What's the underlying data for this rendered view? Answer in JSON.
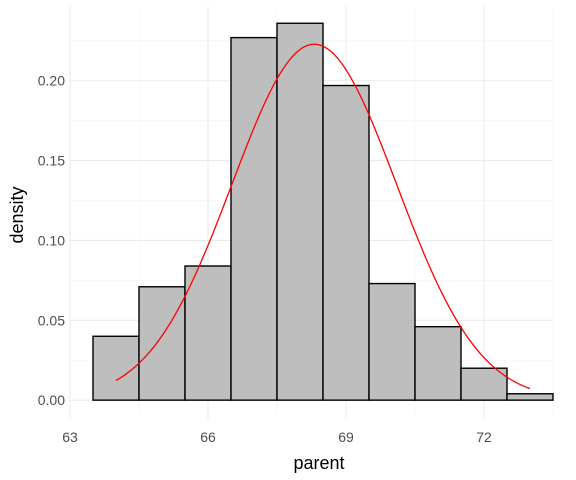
{
  "chart_data": {
    "type": "bar",
    "subtype": "histogram-with-density-curve",
    "xlabel": "parent",
    "ylabel": "density",
    "xlim": [
      63,
      73.5
    ],
    "ylim": [
      0,
      0.235
    ],
    "x_ticks": [
      63,
      66,
      69,
      72
    ],
    "x_tick_labels": [
      "63",
      "66",
      "69",
      "72"
    ],
    "y_ticks": [
      0,
      0.05,
      0.1,
      0.15,
      0.2
    ],
    "y_tick_labels": [
      "0.00",
      "0.05",
      "0.10",
      "0.15",
      "0.20"
    ],
    "grid": true,
    "bins": [
      {
        "x0": 63.5,
        "x1": 64.5,
        "density": 0.04
      },
      {
        "x0": 64.5,
        "x1": 65.5,
        "density": 0.071
      },
      {
        "x0": 65.5,
        "x1": 66.5,
        "density": 0.084
      },
      {
        "x0": 66.5,
        "x1": 67.5,
        "density": 0.227
      },
      {
        "x0": 67.5,
        "x1": 68.5,
        "density": 0.236
      },
      {
        "x0": 68.5,
        "x1": 69.5,
        "density": 0.197
      },
      {
        "x0": 69.5,
        "x1": 70.5,
        "density": 0.073
      },
      {
        "x0": 70.5,
        "x1": 71.5,
        "density": 0.046
      },
      {
        "x0": 71.5,
        "x1": 72.5,
        "density": 0.02
      },
      {
        "x0": 72.5,
        "x1": 73.5,
        "density": 0.004
      }
    ],
    "bar_fill": "#bebebe",
    "bar_stroke": "#000000",
    "curve": {
      "type": "line",
      "distribution": "normal",
      "mean": 68.31,
      "sd": 1.79,
      "x_range": [
        64,
        73
      ],
      "color": "#ff0000"
    }
  }
}
